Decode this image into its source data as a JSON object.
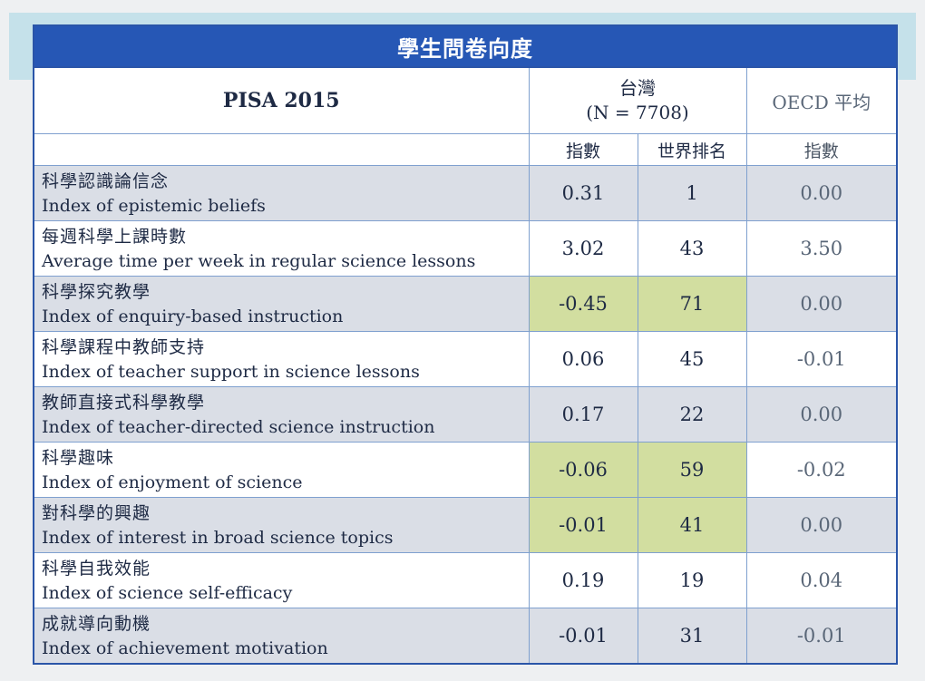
{
  "table": {
    "title": "學生問卷向度",
    "header_label": "PISA 2015",
    "taiwan_label": "台灣",
    "taiwan_n": "(N = 7708)",
    "oecd_label_en": "OECD",
    "oecd_label_zh": "平均",
    "sub_index": "指數",
    "sub_rank": "世界排名",
    "sub_oecd_index": "指數",
    "rows": [
      {
        "zh": "科學認識論信念",
        "en": "Index of epistemic beliefs",
        "tw_index": "0.31",
        "rank": "1",
        "oecd": "0.00"
      },
      {
        "zh": "每週科學上課時數",
        "en": "Average time per week in regular science lessons",
        "tw_index": "3.02",
        "rank": "43",
        "oecd": "3.50"
      },
      {
        "zh": "科學探究教學",
        "en": "Index of enquiry-based instruction",
        "tw_index": "-0.45",
        "rank": "71",
        "oecd": "0.00"
      },
      {
        "zh": "科學課程中教師支持",
        "en": "Index of teacher support in science lessons",
        "tw_index": "0.06",
        "rank": "45",
        "oecd": "-0.01"
      },
      {
        "zh": "教師直接式科學教學",
        "en": "Index of teacher-directed science instruction",
        "tw_index": "0.17",
        "rank": "22",
        "oecd": "0.00"
      },
      {
        "zh": "科學趣味",
        "en": "Index of enjoyment of science",
        "tw_index": "-0.06",
        "rank": "59",
        "oecd": "-0.02"
      },
      {
        "zh": "對科學的興趣",
        "en": "Index of interest in broad science topics",
        "tw_index": "-0.01",
        "rank": "41",
        "oecd": "0.00"
      },
      {
        "zh": "科學自我效能",
        "en": "Index of science self-efficacy",
        "tw_index": "0.19",
        "rank": "19",
        "oecd": "0.04"
      },
      {
        "zh": "成就導向動機",
        "en": "Index of achievement motivation",
        "tw_index": "-0.01",
        "rank": "31",
        "oecd": "-0.01"
      }
    ]
  },
  "colors": {
    "title_bg": "#2657b5",
    "shade": "#dadee6",
    "highlight": "#d2dea0",
    "border": "#7fa0cf"
  }
}
